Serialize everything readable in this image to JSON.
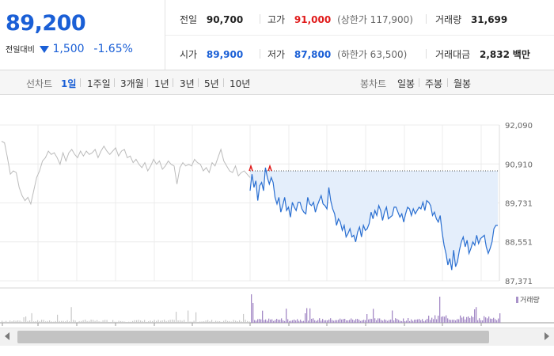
{
  "quote": {
    "price": "89,200",
    "change_label": "전일대비",
    "change": "1,500",
    "change_pct": "-1.65%",
    "color_down": "#1a5fd6",
    "color_up": "#e01a1a"
  },
  "stats": {
    "prev_close_label": "전일",
    "prev_close": "90,700",
    "high_label": "고가",
    "high": "91,000",
    "upper_limit": "(상한가 117,900)",
    "volume_label": "거래량",
    "volume": "31,699",
    "open_label": "시가",
    "open": "89,900",
    "low_label": "저가",
    "low": "87,800",
    "lower_limit": "(하한가 63,500)",
    "amount_label": "거래대금",
    "amount": "2,832",
    "amount_unit": "백만"
  },
  "tabs": {
    "line_label": "선차트",
    "line_tabs": [
      "1일",
      "1주일",
      "3개월",
      "1년",
      "3년",
      "5년",
      "10년"
    ],
    "active": "1일",
    "candle_label": "봉차트",
    "candle_tabs": [
      "일봉",
      "주봉",
      "월봉"
    ]
  },
  "chart_data": {
    "type": "line",
    "y_ticks": [
      "92,090",
      "90,910",
      "89,731",
      "88,551",
      "87,371"
    ],
    "y_tick_values": [
      92090,
      90910,
      89731,
      88551,
      87371
    ],
    "ylim": [
      87371,
      92090
    ],
    "reference_line": 90700,
    "volume_legend": "거래량",
    "grid": true,
    "series": [
      {
        "role": "previous-day",
        "color": "#bbbbbb",
        "values": [
          91600,
          91550,
          91100,
          90600,
          90700,
          90650,
          90200,
          89950,
          89800,
          89900,
          89700,
          90100,
          90500,
          90700,
          91000,
          91100,
          91300,
          91200,
          91250,
          91100,
          90900,
          91250,
          91000,
          91250,
          91350,
          91200,
          91100,
          91300,
          91150,
          91300,
          91200,
          91250,
          91350,
          91100,
          91300,
          91450,
          91300,
          91200,
          91300,
          91400,
          91150,
          91300,
          91350,
          91100,
          91150,
          90950,
          91050,
          90900,
          90800,
          90950,
          90700,
          90850,
          91050,
          90900,
          91000,
          90750,
          90850,
          91000,
          90900,
          90850,
          90300,
          90800,
          90950,
          90850,
          90900,
          90850,
          91050,
          90950,
          90900,
          90700,
          90800,
          90650,
          90950,
          90850,
          91100,
          91350,
          91000,
          90850,
          90700,
          90650,
          90850,
          90550,
          90650,
          90700,
          90600,
          90500
        ]
      },
      {
        "role": "today",
        "color": "#2a6fd1",
        "fill": "#e4eefb",
        "values": [
          90100,
          90600,
          90200,
          90400,
          89800,
          90250,
          90350,
          90100,
          90800,
          90500,
          90300,
          90500,
          90350,
          89900,
          89700,
          89900,
          89450,
          89650,
          89900,
          89500,
          89600,
          89300,
          89750,
          89600,
          89500,
          89750,
          89750,
          89550,
          89450,
          89400,
          89900,
          89700,
          89650,
          89750,
          89450,
          89650,
          89800,
          89950,
          89700,
          89650,
          89550,
          90200,
          89800,
          89550,
          89400,
          89050,
          89250,
          89150,
          88900,
          89050,
          88700,
          88800,
          88950,
          88700,
          88750,
          88550,
          88850,
          89000,
          88700,
          89050,
          88900,
          88950,
          89100,
          89450,
          89250,
          89500,
          89350,
          89650,
          89500,
          89200,
          89450,
          89600,
          89250,
          89300,
          89350,
          89600,
          89600,
          89450,
          89300,
          89400,
          89150,
          89400,
          89600,
          89550,
          89350,
          89550,
          89400,
          89500,
          89600,
          89550,
          89750,
          89500,
          89800,
          89750,
          89650,
          89350,
          89450,
          89250,
          89150,
          89350,
          88850,
          88450,
          88200,
          87850,
          88050,
          87700,
          88300,
          87800,
          87950,
          88300,
          88550,
          88700,
          88400,
          88600,
          88200,
          88350,
          88550,
          88450,
          88750,
          88500,
          88650,
          88700,
          88750,
          88400,
          88200,
          88350,
          88550,
          88950,
          89050,
          89050
        ]
      }
    ]
  }
}
